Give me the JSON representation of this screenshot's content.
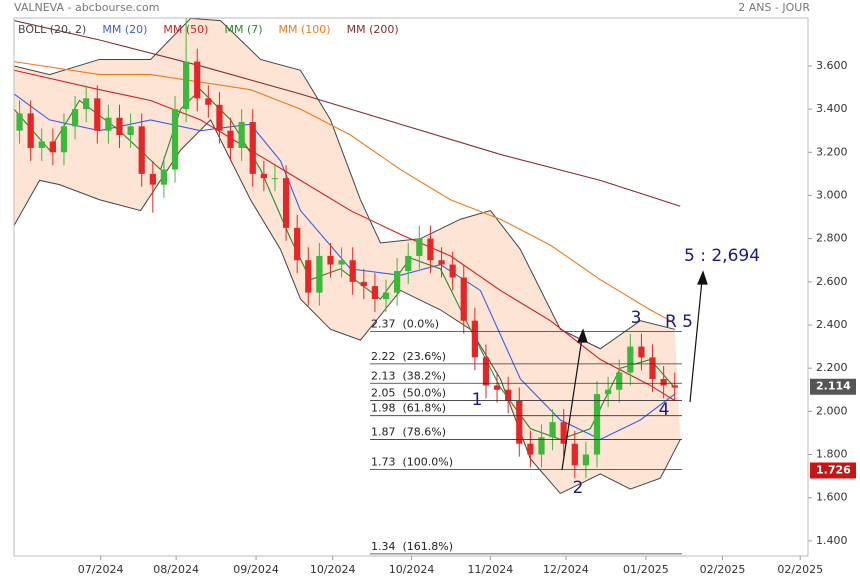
{
  "chart_data": {
    "type": "candlestick",
    "title": "VALNEVA - abcbourse.com",
    "subtitle": "2 ANS - JOUR",
    "xlim": [
      0,
      71.5
    ],
    "xticks": [
      {
        "value": 7.8,
        "label": "07/2024"
      },
      {
        "value": 14.6,
        "label": "08/2024"
      },
      {
        "value": 21.8,
        "label": "09/2024"
      },
      {
        "value": 28.7,
        "label": "10/2024"
      },
      {
        "value": 35.8,
        "label": "10/2024"
      },
      {
        "value": 42.9,
        "label": "11/2024"
      },
      {
        "value": 49.7,
        "label": "12/2024"
      },
      {
        "value": 56.9,
        "label": "01/2025"
      },
      {
        "value": 63.8,
        "label": "02/2025"
      },
      {
        "value": 70.8,
        "label": "02/2025"
      }
    ],
    "ylim": [
      1.33,
      3.822
    ],
    "yticks": [
      {
        "value": 3.6,
        "label": "3.600"
      },
      {
        "value": 3.4,
        "label": "3.400"
      },
      {
        "value": 3.2,
        "label": "3.200"
      },
      {
        "value": 3.0,
        "label": "3.000"
      },
      {
        "value": 2.8,
        "label": "2.800"
      },
      {
        "value": 2.6,
        "label": "2.600"
      },
      {
        "value": 2.4,
        "label": "2.400"
      },
      {
        "value": 2.2,
        "label": "2.200"
      },
      {
        "value": 2.0,
        "label": "2.000"
      },
      {
        "value": 1.8,
        "label": "1.800"
      },
      {
        "value": 1.6,
        "label": "1.600"
      },
      {
        "value": 1.4,
        "label": "1.400"
      }
    ],
    "up_color": "#3cb83c",
    "down_color": "#e02828",
    "candles": {
      "open": [
        3.3,
        3.38,
        3.22,
        3.25,
        3.2,
        3.32,
        3.4,
        3.45,
        3.3,
        3.36,
        3.28,
        3.32,
        3.1,
        3.05,
        3.12,
        3.4,
        3.62,
        3.45,
        3.42,
        3.3,
        3.22,
        3.34,
        3.1,
        3.08,
        3.08,
        2.85,
        2.7,
        2.55,
        2.72,
        2.68,
        2.7,
        2.6,
        2.58,
        2.52,
        2.55,
        2.65,
        2.72,
        2.8,
        2.7,
        2.68,
        2.62,
        2.42,
        2.25,
        2.12,
        2.1,
        2.05,
        1.85,
        1.8,
        1.88,
        1.95,
        1.85,
        1.75,
        1.8,
        2.08,
        2.1,
        2.18,
        2.3,
        2.25,
        2.15,
        2.12
      ],
      "high": [
        3.44,
        3.44,
        3.31,
        3.31,
        3.38,
        3.46,
        3.51,
        3.51,
        3.42,
        3.42,
        3.38,
        3.38,
        3.16,
        3.18,
        3.46,
        3.85,
        3.68,
        3.51,
        3.48,
        3.36,
        3.4,
        3.4,
        3.16,
        3.14,
        3.14,
        2.91,
        2.76,
        2.78,
        2.78,
        2.76,
        2.76,
        2.66,
        2.64,
        2.61,
        2.71,
        2.78,
        2.86,
        2.86,
        2.76,
        2.74,
        2.68,
        2.48,
        2.31,
        2.18,
        2.16,
        2.11,
        1.91,
        1.94,
        2.01,
        2.01,
        1.91,
        1.86,
        2.14,
        2.16,
        2.24,
        2.36,
        2.36,
        2.31,
        2.21,
        2.18
      ],
      "low": [
        3.24,
        3.16,
        3.16,
        3.14,
        3.14,
        3.26,
        3.34,
        3.24,
        3.24,
        3.22,
        3.22,
        3.04,
        2.92,
        2.99,
        3.06,
        3.34,
        3.39,
        3.36,
        3.24,
        3.16,
        3.16,
        3.04,
        3.02,
        3.02,
        2.79,
        2.64,
        2.49,
        2.49,
        2.62,
        2.62,
        2.54,
        2.52,
        2.46,
        2.46,
        2.49,
        2.59,
        2.66,
        2.64,
        2.62,
        2.56,
        2.36,
        2.19,
        2.06,
        2.04,
        1.99,
        1.79,
        1.74,
        1.74,
        1.82,
        1.79,
        1.69,
        1.69,
        1.74,
        2.02,
        2.04,
        2.12,
        2.19,
        2.09,
        2.06,
        2.05
      ],
      "close": [
        3.38,
        3.22,
        3.25,
        3.2,
        3.32,
        3.4,
        3.45,
        3.3,
        3.36,
        3.28,
        3.32,
        3.1,
        3.05,
        3.12,
        3.4,
        3.62,
        3.45,
        3.42,
        3.3,
        3.22,
        3.34,
        3.1,
        3.08,
        3.08,
        2.85,
        2.7,
        2.55,
        2.72,
        2.68,
        2.7,
        2.6,
        2.58,
        2.52,
        2.55,
        2.65,
        2.72,
        2.8,
        2.7,
        2.68,
        2.62,
        2.42,
        2.25,
        2.12,
        2.1,
        2.05,
        1.85,
        1.8,
        1.88,
        1.95,
        1.85,
        1.75,
        1.8,
        2.08,
        2.1,
        2.18,
        2.3,
        2.25,
        2.15,
        2.12,
        2.11
      ]
    },
    "bollinger": {
      "name": "BOLL (20, 2)",
      "color": "#444",
      "fill": "#fde4d4",
      "upper": {
        "x": [
          0,
          3.2,
          7.7,
          12.3,
          15.9,
          18.6,
          22.2,
          25.8,
          28.5,
          31.2,
          33.0,
          36.6,
          40.2,
          42.9,
          45.6,
          49.2,
          52.8,
          56.4,
          59.5
        ],
        "values": [
          3.6,
          3.56,
          3.63,
          3.63,
          3.82,
          3.81,
          3.63,
          3.58,
          3.35,
          2.98,
          2.78,
          2.8,
          2.89,
          2.93,
          2.75,
          2.38,
          2.29,
          2.42,
          2.38
        ]
      },
      "lower": {
        "x": [
          0,
          2.3,
          4.1,
          7.7,
          11.4,
          15.0,
          17.7,
          21.3,
          24.0,
          25.8,
          28.5,
          31.2,
          34.8,
          38.4,
          41.1,
          43.8,
          46.5,
          49.2,
          52.8,
          55.5,
          58.2,
          60.0
        ],
        "values": [
          2.86,
          3.07,
          3.05,
          2.98,
          2.93,
          3.21,
          3.35,
          2.98,
          2.75,
          2.52,
          2.38,
          2.33,
          2.56,
          2.47,
          2.38,
          2.15,
          1.78,
          1.62,
          1.71,
          1.64,
          1.69,
          1.87
        ]
      }
    },
    "moving_averages": [
      {
        "name": "MM (20)",
        "color": "#3b5ee6",
        "x": [
          0,
          3.2,
          7.7,
          12.3,
          16.8,
          21.3,
          24.0,
          25.8,
          30.3,
          34.8,
          38.4,
          42.0,
          45.6,
          49.2,
          52.8,
          56.4,
          59.5
        ],
        "values": [
          3.47,
          3.35,
          3.3,
          3.35,
          3.3,
          3.33,
          3.16,
          2.93,
          2.66,
          2.63,
          2.68,
          2.56,
          2.15,
          1.96,
          1.87,
          1.96,
          2.08
        ]
      },
      {
        "name": "MM (50)",
        "color": "#d42020",
        "x": [
          0,
          7.7,
          12.3,
          16.8,
          21.3,
          25.8,
          30.3,
          34.8,
          39.3,
          43.8,
          48.3,
          52.8,
          57.3,
          59.5
        ],
        "values": [
          3.58,
          3.49,
          3.44,
          3.35,
          3.21,
          3.07,
          2.93,
          2.82,
          2.72,
          2.56,
          2.42,
          2.24,
          2.12,
          2.05
        ]
      },
      {
        "name": "MM (7)",
        "color": "#2a8a2a",
        "x": [
          0,
          3.2,
          5.9,
          9.5,
          13.2,
          15.0,
          16.8,
          19.5,
          22.2,
          24.9,
          26.7,
          29.4,
          33.0,
          35.7,
          38.4,
          41.1,
          43.8,
          46.5,
          49.2,
          51.9,
          54.6,
          57.3,
          59.5
        ],
        "values": [
          3.4,
          3.21,
          3.44,
          3.3,
          3.12,
          3.4,
          3.49,
          3.35,
          3.12,
          2.8,
          2.61,
          2.66,
          2.52,
          2.71,
          2.66,
          2.38,
          2.11,
          1.92,
          1.87,
          1.92,
          2.2,
          2.24,
          2.11
        ]
      },
      {
        "name": "MM (100)",
        "color": "#f07a1a",
        "x": [
          0,
          7.7,
          12.3,
          21.3,
          25.8,
          30.3,
          34.8,
          39.3,
          43.8,
          48.3,
          52.8,
          57.3,
          59.1
        ],
        "values": [
          3.62,
          3.56,
          3.56,
          3.49,
          3.4,
          3.28,
          3.12,
          2.98,
          2.89,
          2.77,
          2.61,
          2.47,
          2.42
        ]
      },
      {
        "name": "MM (200)",
        "color": "#8a2c2c",
        "x": [
          0,
          7.7,
          16.8,
          25.8,
          34.8,
          43.8,
          52.8,
          60.0
        ],
        "values": [
          3.81,
          3.72,
          3.6,
          3.47,
          3.33,
          3.19,
          3.07,
          2.95
        ]
      }
    ],
    "fib_levels": [
      {
        "value": 2.37,
        "label": "2.37  (0.0%)"
      },
      {
        "value": 2.22,
        "label": "2.22  (23.6%)"
      },
      {
        "value": 2.13,
        "label": "2.13  (38.2%)"
      },
      {
        "value": 2.05,
        "label": "2.05  (50.0%)"
      },
      {
        "value": 1.98,
        "label": "1.98  (61.8%)"
      },
      {
        "value": 1.87,
        "label": "1.87  (78.6%)"
      },
      {
        "value": 1.73,
        "label": "1.73  (100.0%)"
      },
      {
        "value": 1.34,
        "label": "1.34  (161.8%)"
      }
    ],
    "price_tags": [
      {
        "value": 2.114,
        "color": "#555555"
      },
      {
        "value": 1.726,
        "color": "#c81414"
      }
    ],
    "annotations": [
      "1",
      "2",
      "3",
      "4",
      "R 5",
      "5 : 2,694"
    ]
  }
}
